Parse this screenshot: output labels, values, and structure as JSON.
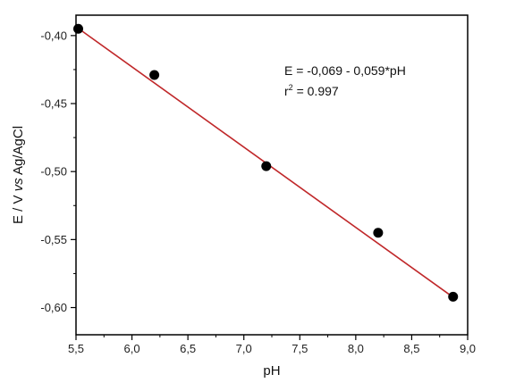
{
  "chart_data": {
    "type": "scatter",
    "xlabel": "pH",
    "ylabel_parts": [
      "E / V ",
      "vs",
      " Ag/AgCl"
    ],
    "xlim": [
      5.5,
      9.0
    ],
    "ylim": [
      -0.62,
      -0.385
    ],
    "x_ticks": [
      5.5,
      6.0,
      6.5,
      7.0,
      7.5,
      8.0,
      8.5,
      9.0
    ],
    "x_tick_labels": [
      "5,5",
      "6,0",
      "6,5",
      "7,0",
      "7,5",
      "8,0",
      "8,5",
      "9,0"
    ],
    "y_ticks": [
      -0.4,
      -0.45,
      -0.5,
      -0.55,
      -0.6
    ],
    "y_tick_labels": [
      "-0,40",
      "-0,45",
      "-0,50",
      "-0,55",
      "-0,60"
    ],
    "grid": false,
    "points": [
      {
        "x": 5.52,
        "y": -0.395
      },
      {
        "x": 6.2,
        "y": -0.429
      },
      {
        "x": 7.2,
        "y": -0.496
      },
      {
        "x": 8.2,
        "y": -0.545
      },
      {
        "x": 8.87,
        "y": -0.592
      }
    ],
    "fit_line": {
      "x": [
        5.52,
        8.87
      ],
      "y": [
        -0.3947,
        -0.5924
      ],
      "color": "#c0282a"
    },
    "marker_color": "#000000",
    "annotation": {
      "equation": "E = -0,069 - 0,059*pH",
      "r2_base": "r",
      "r2_sup": "2",
      "r2_value": " = 0.997"
    }
  }
}
